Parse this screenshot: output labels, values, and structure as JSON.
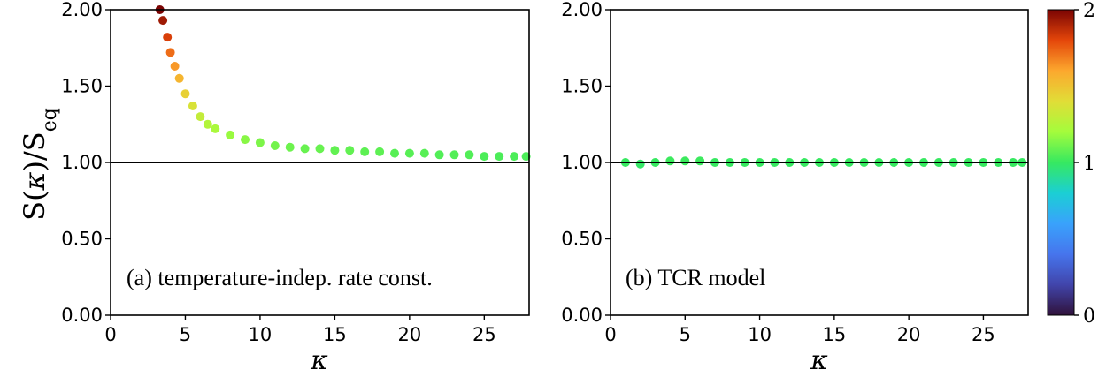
{
  "chart_data": [
    {
      "type": "scatter",
      "annotation": "(a) temperature-indep. rate const.",
      "xlabel": "κ",
      "ylabel": "S(κ)/S_eq",
      "xlim": [
        0,
        28
      ],
      "ylim": [
        0,
        2
      ],
      "xticks": [
        "0",
        "5",
        "10",
        "15",
        "20",
        "25"
      ],
      "yticks": [
        "0.00",
        "0.50",
        "1.00",
        "1.50",
        "2.00"
      ],
      "reference_line": 1.0,
      "grid": false,
      "colormap": "turbo",
      "color_range": [
        0,
        2
      ],
      "series": [
        {
          "x": [
            3.3,
            3.5,
            3.8,
            4.0,
            4.3,
            4.6,
            5.0,
            5.5,
            6.0,
            6.5,
            7.0,
            8.0,
            9.0,
            10.0,
            11.0,
            12.0,
            13.0,
            14.0,
            15.0,
            16.0,
            17.0,
            18.0,
            19.0,
            20.0,
            21.0,
            22.0,
            23.0,
            24.0,
            25.0,
            26.0,
            27.0,
            27.8
          ],
          "y": [
            2.0,
            1.93,
            1.82,
            1.72,
            1.63,
            1.55,
            1.45,
            1.37,
            1.3,
            1.25,
            1.22,
            1.18,
            1.15,
            1.13,
            1.11,
            1.1,
            1.09,
            1.09,
            1.08,
            1.08,
            1.07,
            1.07,
            1.06,
            1.06,
            1.06,
            1.05,
            1.05,
            1.05,
            1.04,
            1.04,
            1.04,
            1.04
          ]
        }
      ]
    },
    {
      "type": "scatter",
      "annotation": "(b) TCR model",
      "xlabel": "κ",
      "ylabel": "",
      "xlim": [
        0,
        28
      ],
      "ylim": [
        0,
        2
      ],
      "xticks": [
        "0",
        "5",
        "10",
        "15",
        "20",
        "25"
      ],
      "yticks": [
        "0.00",
        "0.50",
        "1.00",
        "1.50",
        "2.00"
      ],
      "reference_line": 1.0,
      "grid": false,
      "colormap": "turbo",
      "color_range": [
        0,
        2
      ],
      "series": [
        {
          "x": [
            1.0,
            2.0,
            3.0,
            4.0,
            5.0,
            6.0,
            7.0,
            8.0,
            9.0,
            10.0,
            11.0,
            12.0,
            13.0,
            14.0,
            15.0,
            16.0,
            17.0,
            18.0,
            19.0,
            20.0,
            21.0,
            22.0,
            23.0,
            24.0,
            25.0,
            26.0,
            27.0,
            27.6
          ],
          "y": [
            1.0,
            0.99,
            1.0,
            1.01,
            1.01,
            1.01,
            1.0,
            1.0,
            1.0,
            1.0,
            1.0,
            1.0,
            1.0,
            1.0,
            1.0,
            1.0,
            1.0,
            1.0,
            1.0,
            1.0,
            1.0,
            1.0,
            1.0,
            1.0,
            1.0,
            1.0,
            1.0,
            1.0
          ]
        }
      ]
    }
  ],
  "colorbar": {
    "ticks": [
      "0",
      "1",
      "2"
    ],
    "min": 0,
    "max": 2,
    "colormap": "turbo"
  }
}
